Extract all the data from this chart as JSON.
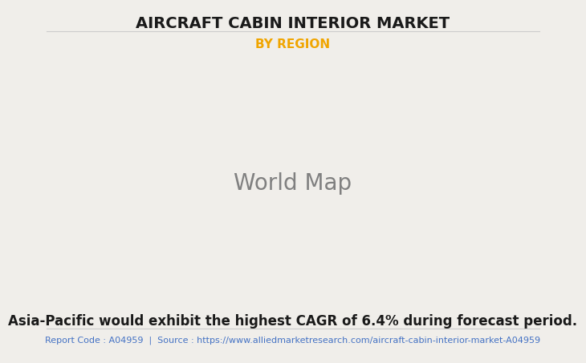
{
  "title": "AIRCRAFT CABIN INTERIOR MARKET",
  "subtitle": "BY REGION",
  "subtitle_color": "#f0a500",
  "title_color": "#1a1a1a",
  "background_color": "#f0eeea",
  "map_land_color": "#7dba8a",
  "map_ocean_color": "#f0eeea",
  "map_border_color": "#a0c0d0",
  "map_highlight_color": "#ffffff",
  "map_shadow_color": "#9aaa9a",
  "annotation_text": "Asia-Pacific would exhibit the highest CAGR of 6.4% during forecast period.",
  "annotation_color": "#1a1a1a",
  "footer_text": "Report Code : A04959  |  Source : https://www.alliedmarketresearch.com/aircraft-cabin-interior-market-A04959",
  "footer_color": "#4472c4",
  "title_fontsize": 14,
  "subtitle_fontsize": 11,
  "annotation_fontsize": 12,
  "footer_fontsize": 8,
  "separator_color": "#cccccc"
}
